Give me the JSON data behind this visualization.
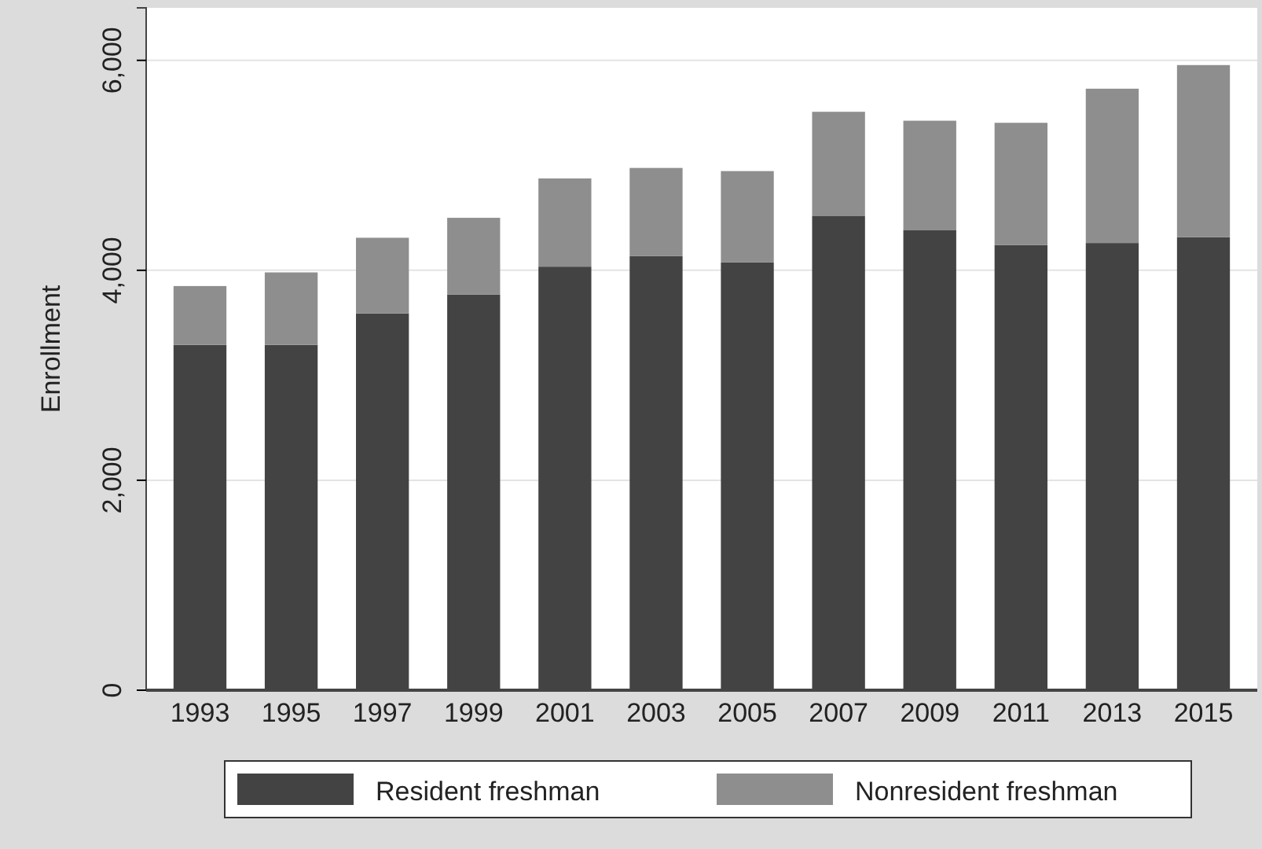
{
  "chart_data": {
    "type": "bar",
    "stacked": true,
    "ylabel": "Enrollment",
    "categories": [
      "1993",
      "1995",
      "1997",
      "1999",
      "2001",
      "2003",
      "2005",
      "2007",
      "2009",
      "2011",
      "2013",
      "2015"
    ],
    "series": [
      {
        "name": "Resident freshman",
        "color": "#434343",
        "values": [
          3290,
          3290,
          3590,
          3770,
          4035,
          4135,
          4075,
          4520,
          4385,
          4240,
          4260,
          4315
        ]
      },
      {
        "name": "Nonresident freshman",
        "color": "#8e8e8e",
        "values": [
          560,
          690,
          720,
          730,
          840,
          840,
          870,
          990,
          1040,
          1165,
          1470,
          1640
        ]
      }
    ],
    "ylim": [
      0,
      6500
    ],
    "yticks": [
      {
        "value": 0,
        "label": "0"
      },
      {
        "value": 2000,
        "label": "2,000"
      },
      {
        "value": 4000,
        "label": "4,000"
      },
      {
        "value": 6000,
        "label": "6,000"
      }
    ],
    "grid": "y",
    "legend": "bottom"
  }
}
